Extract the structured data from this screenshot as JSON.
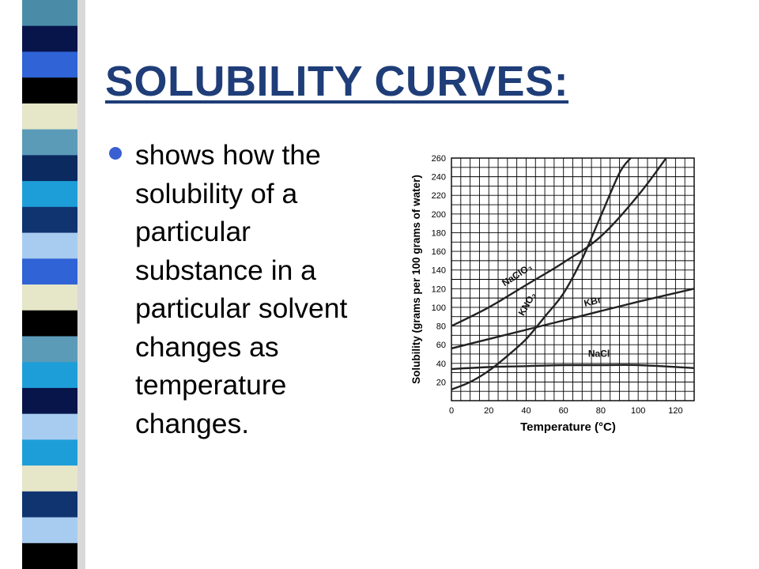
{
  "slide": {
    "title": "SOLUBILITY CURVES:",
    "bullets": [
      {
        "text": "shows how the\nsolubility of a\nparticular\nsubstance in a\nparticular solvent\nchanges as\ntemperature\nchanges."
      }
    ],
    "colors": {
      "title": "#1f3d78",
      "bullet": "#3a5fd0"
    },
    "stripe_colors": [
      "#4a8ca8",
      "#08154a",
      "#2f63d6",
      "#000000",
      "#e6e6c8",
      "#5b9bb8",
      "#0a2a60",
      "#1e9ed8",
      "#0f3470",
      "#a8ccf0",
      "#2f63d6",
      "#e6e6c8",
      "#000000",
      "#5b9bb8",
      "#1e9ed8",
      "#08154a",
      "#a8ccf0",
      "#1e9ed8",
      "#e6e6c8",
      "#0f3470",
      "#a8ccf0",
      "#000000"
    ]
  },
  "chart_data": {
    "type": "line",
    "xlabel": "Temperature (°C)",
    "ylabel": "Solubility (grams per 100 grams of water)",
    "xlim": [
      0,
      130
    ],
    "ylim": [
      0,
      260
    ],
    "xticks": [
      0,
      20,
      40,
      60,
      80,
      100,
      120
    ],
    "yticks": [
      20,
      40,
      60,
      80,
      100,
      120,
      140,
      160,
      180,
      200,
      220,
      240,
      260
    ],
    "grid": true,
    "series": [
      {
        "name": "NaClO₃",
        "x": [
          0,
          20,
          40,
          60,
          80,
          100,
          115
        ],
        "y": [
          80,
          100,
          124,
          148,
          176,
          220,
          260
        ]
      },
      {
        "name": "KNO₃",
        "x": [
          0,
          10,
          20,
          30,
          40,
          50,
          60,
          70,
          80,
          90,
          96
        ],
        "y": [
          12,
          20,
          32,
          48,
          66,
          90,
          115,
          152,
          198,
          244,
          260
        ]
      },
      {
        "name": "KBr",
        "x": [
          0,
          20,
          40,
          60,
          80,
          100,
          130
        ],
        "y": [
          56,
          66,
          76,
          86,
          96,
          106,
          120
        ]
      },
      {
        "name": "NaCl",
        "x": [
          0,
          20,
          40,
          60,
          80,
          100,
          130
        ],
        "y": [
          34,
          36,
          37,
          38,
          38,
          38,
          35
        ]
      }
    ]
  }
}
